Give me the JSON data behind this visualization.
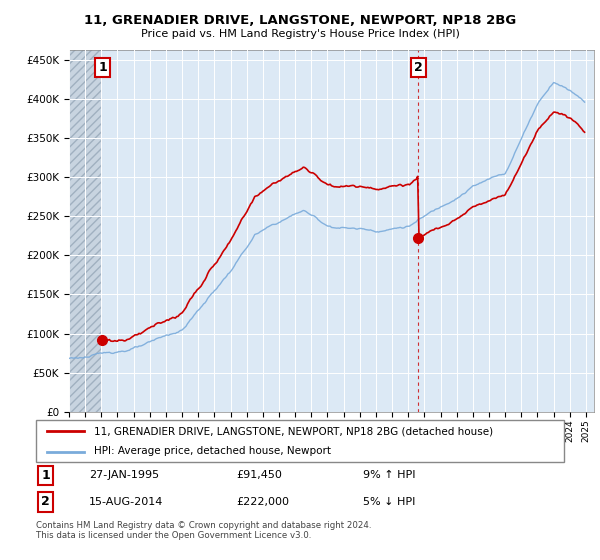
{
  "title": "11, GRENADIER DRIVE, LANGSTONE, NEWPORT, NP18 2BG",
  "subtitle": "Price paid vs. HM Land Registry's House Price Index (HPI)",
  "legend_line1": "11, GRENADIER DRIVE, LANGSTONE, NEWPORT, NP18 2BG (detached house)",
  "legend_line2": "HPI: Average price, detached house, Newport",
  "annotation1_date": "27-JAN-1995",
  "annotation1_price": "£91,450",
  "annotation1_hpi": "9% ↑ HPI",
  "annotation2_date": "15-AUG-2014",
  "annotation2_price": "£222,000",
  "annotation2_hpi": "5% ↓ HPI",
  "footer": "Contains HM Land Registry data © Crown copyright and database right 2024.\nThis data is licensed under the Open Government Licence v3.0.",
  "property_color": "#cc0000",
  "hpi_color": "#7aabdb",
  "bg_color": "#dce9f5",
  "hatch_bg": "#d0d8e0",
  "grid_color": "#ffffff",
  "ylim": [
    0,
    462500
  ],
  "yticks": [
    0,
    50000,
    100000,
    150000,
    200000,
    250000,
    300000,
    350000,
    400000,
    450000
  ],
  "sale1_year_f": 1995.07,
  "sale1_price": 91450,
  "sale2_year_f": 2014.62,
  "sale2_price": 222000,
  "xmin": 1993.0,
  "xmax": 2025.5
}
